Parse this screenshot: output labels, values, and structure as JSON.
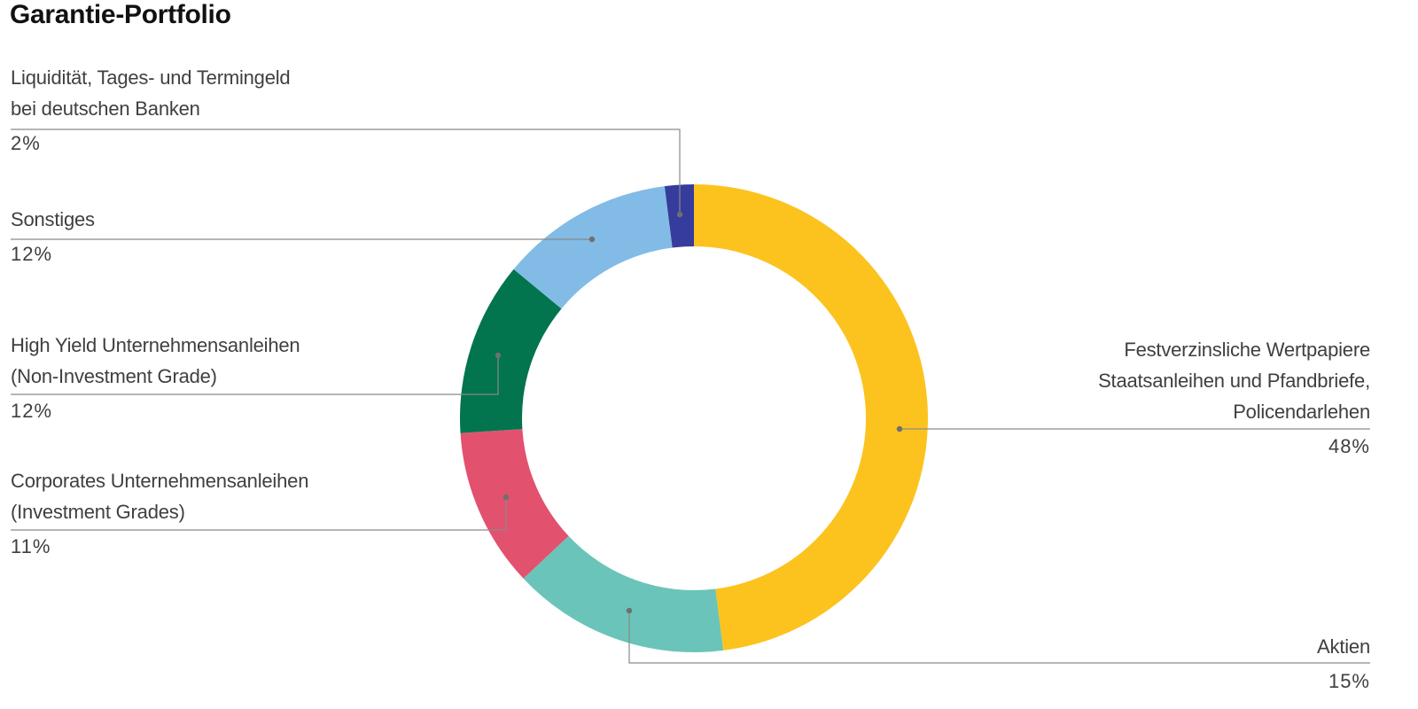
{
  "title": "Garantie-Portfolio",
  "chart_data": {
    "type": "pie",
    "title": "Garantie-Portfolio",
    "donut": true,
    "start_angle_deg": 0,
    "direction": "clockwise",
    "slices": [
      {
        "label": "Festverzinsliche Wertpapiere\nStaatsanleihen und Pfandbriefe,\nPolicendarlehen",
        "value": 48,
        "value_label": "48%",
        "color": "#fcc31f"
      },
      {
        "label": "Aktien",
        "value": 15,
        "value_label": "15%",
        "color": "#6ac4b9"
      },
      {
        "label": "Corporates Unternehmensanleihen\n(Investment Grades)",
        "value": 11,
        "value_label": "11%",
        "color": "#e2516e"
      },
      {
        "label": "High Yield Unternehmensanleihen\n(Non-Investment Grade)",
        "value": 12,
        "value_label": "12%",
        "color": "#02744e"
      },
      {
        "label": "Sonstiges",
        "value": 12,
        "value_label": "12%",
        "color": "#82bbe6"
      },
      {
        "label": "Liquidität, Tages- und Termingeld\nbei deutschen Banken",
        "value": 2,
        "value_label": "2%",
        "color": "#363c9b"
      }
    ]
  }
}
